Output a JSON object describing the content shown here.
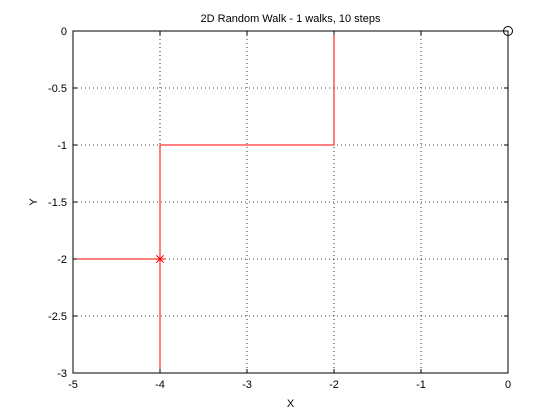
{
  "chart_data": {
    "type": "line",
    "title": "2D Random Walk - 1 walks, 10 steps",
    "xlabel": "X",
    "ylabel": "Y",
    "xlim": [
      -5,
      0
    ],
    "ylim": [
      -3,
      0
    ],
    "xticks": [
      -5,
      -4,
      -3,
      -2,
      -1,
      0
    ],
    "yticks": [
      0,
      -0.5,
      -1,
      -1.5,
      -2,
      -2.5,
      -3
    ],
    "xtick_labels": [
      "-5",
      "-4",
      "-3",
      "-2",
      "-1",
      "0"
    ],
    "ytick_labels": [
      "0",
      "-0.5",
      "-1",
      "-1.5",
      "-2",
      "-2.5",
      "-3"
    ],
    "grid": true,
    "grid_style": "dotted",
    "line_color": "#ff0000",
    "series": [
      {
        "x": [
          0,
          -2,
          -2,
          -4,
          -4,
          -4,
          -5,
          -4
        ],
        "y": [
          0,
          0,
          -1,
          -1,
          -3,
          -2,
          -2,
          -2
        ]
      }
    ],
    "start_marker": {
      "x": 0,
      "y": 0,
      "symbol": "circle"
    },
    "end_marker": {
      "x": -4,
      "y": -2,
      "symbol": "star",
      "color": "#ff0000"
    }
  }
}
